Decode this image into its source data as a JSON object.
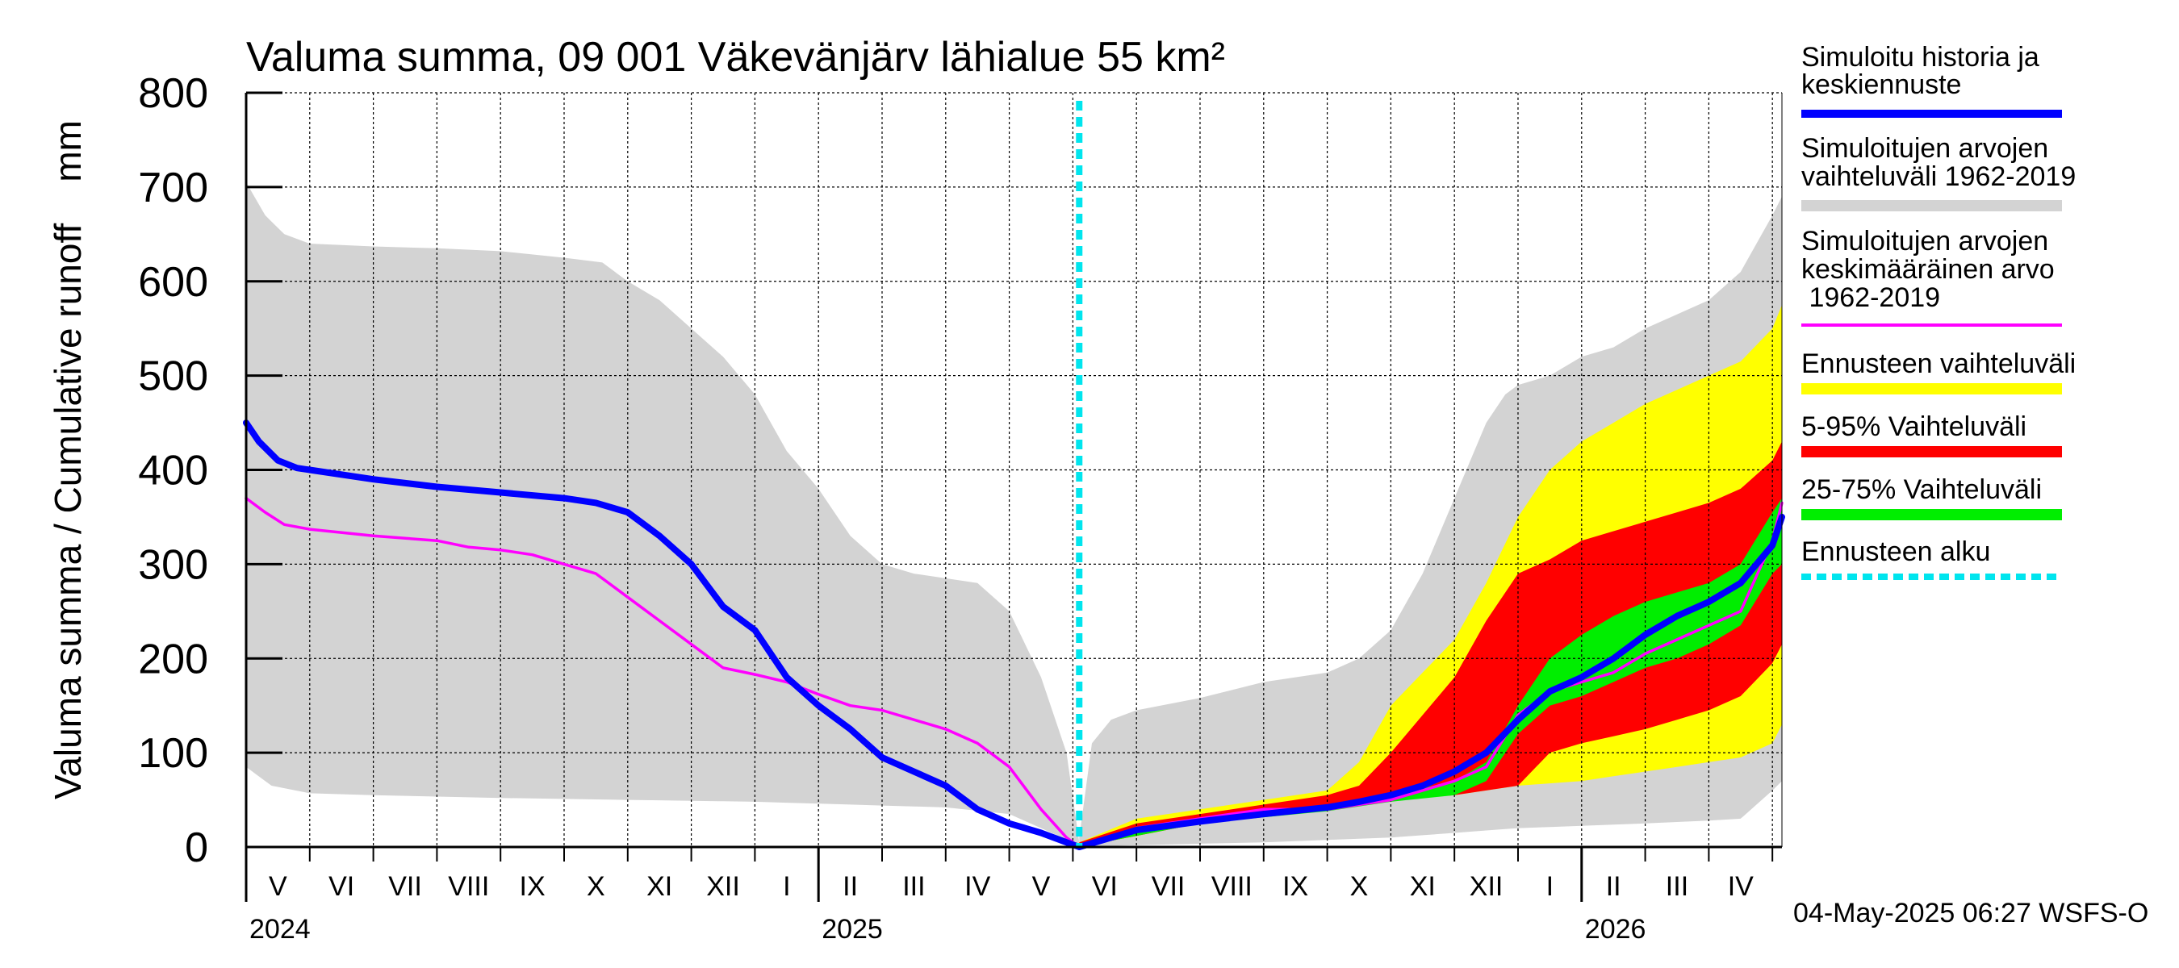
{
  "chart_data": {
    "type": "area",
    "title": "Valuma summa, 09 001 Väkevänjärv lähialue 55 km²",
    "ylabel": "Valuma summa / Cumulative runoff    mm",
    "ylim": [
      0,
      800
    ],
    "yticks": [
      "0",
      "100",
      "200",
      "300",
      "400",
      "500",
      "600",
      "700",
      "800"
    ],
    "x_unit": "months since 2024-04-01",
    "xlim": [
      0,
      24.15
    ],
    "forecast_start": 13.1,
    "month_labels": [
      "V",
      "VI",
      "VII",
      "VIII",
      "IX",
      "X",
      "XI",
      "XII",
      "I",
      "II",
      "III",
      "IV",
      "V",
      "VI",
      "VII",
      "VIII",
      "IX",
      "X",
      "XI",
      "XII",
      "I",
      "II",
      "III",
      "IV"
    ],
    "year_labels": [
      {
        "label": "2024",
        "x": 0
      },
      {
        "label": "2025",
        "x": 9
      },
      {
        "label": "2026",
        "x": 21
      }
    ],
    "timestamp": "04-May-2025 06:27 WSFS-O",
    "legend": [
      {
        "label": "Simuloitu historia ja\nkeskiennuste",
        "color": "#0000ff",
        "style": "line"
      },
      {
        "label": "Simuloitujen arvojen\nvaihteluväli 1962-2019",
        "color": "#d3d3d3",
        "style": "band"
      },
      {
        "label": "Simuloitujen arvojen\nkeskimääräinen arvo\n   1962-2019",
        "color": "#ff00ff",
        "style": "thin"
      },
      {
        "label": "Ennusteen vaihteluväli",
        "color": "#ffff00",
        "style": "band"
      },
      {
        "label": "5-95% Vaihteluväli",
        "color": "#ff0000",
        "style": "band"
      },
      {
        "label": "25-75% Vaihteluväli",
        "color": "#00ee00",
        "style": "band"
      },
      {
        "label": "Ennusteen alku",
        "color": "#00e5ee",
        "style": "dotted"
      }
    ],
    "series": [
      {
        "name": "Simuloitujen arvojen vaihteluväli 1962-2019 (upper)",
        "color": "#d3d3d3",
        "x": [
          0,
          0.3,
          0.6,
          1,
          2,
          3,
          4,
          5,
          5.6,
          6,
          6.5,
          7,
          7.5,
          8,
          8.5,
          9,
          9.5,
          10,
          10.5,
          11,
          11.5,
          12,
          12.5,
          12.9,
          13.1
        ],
        "y": [
          705,
          670,
          650,
          640,
          637,
          635,
          632,
          625,
          620,
          600,
          580,
          550,
          520,
          480,
          420,
          380,
          330,
          300,
          290,
          285,
          280,
          250,
          180,
          100,
          5
        ]
      },
      {
        "name": "Simuloitujen arvojen vaihteluväli 1962-2019 (lower)",
        "color": "#d3d3d3",
        "x": [
          0,
          0.4,
          1,
          2,
          4,
          6,
          8,
          9,
          10,
          11,
          12,
          12.5,
          12.9,
          13.1
        ],
        "y": [
          85,
          65,
          57,
          55,
          52,
          50,
          48,
          46,
          44,
          42,
          35,
          20,
          8,
          0
        ]
      },
      {
        "name": "Sim upper (forecast side)",
        "color": "#d3d3d3",
        "x": [
          13.1,
          13.3,
          13.6,
          14,
          15,
          16,
          17,
          17.5,
          18,
          18.5,
          19,
          19.5,
          19.8,
          20,
          20.5,
          21,
          21.5,
          22,
          22.5,
          23,
          23.5,
          24,
          24.15
        ],
        "y": [
          10,
          110,
          135,
          145,
          158,
          175,
          185,
          200,
          230,
          290,
          370,
          450,
          480,
          490,
          500,
          520,
          530,
          550,
          565,
          580,
          610,
          670,
          690
        ]
      },
      {
        "name": "Sim lower (forecast side)",
        "color": "#d3d3d3",
        "x": [
          13.1,
          14,
          16,
          18,
          20,
          22,
          23,
          23.5,
          24,
          24.15
        ],
        "y": [
          0,
          2,
          5,
          10,
          20,
          25,
          28,
          30,
          60,
          70
        ]
      },
      {
        "name": "Ennusteen vaihteluväli (upper)",
        "color": "#ffff00",
        "x": [
          13.1,
          14,
          15,
          16,
          17,
          17.5,
          18,
          18.5,
          19,
          19.5,
          20,
          20.5,
          21,
          21.5,
          22,
          22.5,
          23,
          23.5,
          24,
          24.15
        ],
        "y": [
          5,
          30,
          40,
          50,
          60,
          90,
          150,
          185,
          220,
          280,
          350,
          400,
          430,
          450,
          470,
          485,
          500,
          515,
          550,
          575
        ]
      },
      {
        "name": "Ennusteen vaihteluväli (lower)",
        "color": "#ffff00",
        "x": [
          13.1,
          15,
          17,
          18,
          19,
          20,
          21,
          22,
          23,
          23.5,
          24,
          24.15
        ],
        "y": [
          0,
          25,
          40,
          50,
          55,
          65,
          70,
          80,
          90,
          95,
          110,
          130
        ]
      },
      {
        "name": "5-95% Vaihteluväli (upper)",
        "color": "#ff0000",
        "x": [
          13.1,
          14,
          15,
          16,
          17,
          17.5,
          18,
          18.5,
          19,
          19.5,
          20,
          20.5,
          21,
          21.5,
          22,
          22.5,
          23,
          23.5,
          24,
          24.15
        ],
        "y": [
          5,
          25,
          35,
          45,
          55,
          65,
          100,
          140,
          180,
          240,
          290,
          305,
          325,
          335,
          345,
          355,
          365,
          380,
          410,
          430
        ]
      },
      {
        "name": "5-95% Vaihteluväli (lower)",
        "color": "#ff0000",
        "x": [
          13.1,
          15,
          17,
          18,
          19,
          20,
          20.5,
          21,
          22,
          23,
          23.5,
          24,
          24.15
        ],
        "y": [
          0,
          25,
          40,
          50,
          55,
          65,
          100,
          110,
          125,
          145,
          160,
          195,
          215
        ]
      },
      {
        "name": "25-75% Vaihteluväli (upper)",
        "color": "#00ee00",
        "x": [
          13.1,
          15,
          17,
          18,
          19,
          19.5,
          20,
          20.5,
          21,
          21.5,
          22,
          22.5,
          23,
          23.5,
          24,
          24.15
        ],
        "y": [
          3,
          28,
          42,
          55,
          70,
          90,
          150,
          200,
          225,
          245,
          260,
          270,
          280,
          300,
          355,
          370
        ]
      },
      {
        "name": "25-75% Vaihteluväli (lower)",
        "color": "#00ee00",
        "x": [
          13.1,
          15,
          17,
          18,
          19,
          19.5,
          20,
          20.5,
          21,
          21.5,
          22,
          22.5,
          23,
          23.5,
          24,
          24.15
        ],
        "y": [
          0,
          25,
          38,
          48,
          55,
          70,
          120,
          150,
          160,
          175,
          190,
          200,
          215,
          235,
          290,
          300
        ]
      },
      {
        "name": "Simuloitujen arvojen keskimääräinen arvo 1962-2019",
        "color": "#ff00ff",
        "x": [
          0,
          0.3,
          0.6,
          1,
          2,
          3,
          3.5,
          4,
          4.5,
          5,
          5.5,
          6,
          6.5,
          7,
          7.5,
          8,
          8.5,
          9,
          9.5,
          10,
          10.5,
          11,
          11.5,
          12,
          12.5,
          12.9,
          13.1,
          14,
          15,
          16,
          17,
          18,
          18.5,
          19,
          19.5,
          20,
          20.5,
          21,
          21.5,
          22,
          22.5,
          23,
          23.5,
          24,
          24.15
        ],
        "y": [
          370,
          355,
          342,
          337,
          330,
          325,
          318,
          315,
          310,
          300,
          290,
          265,
          240,
          215,
          190,
          183,
          175,
          162,
          150,
          145,
          135,
          125,
          110,
          85,
          40,
          10,
          0,
          20,
          30,
          40,
          40,
          50,
          60,
          70,
          85,
          140,
          165,
          175,
          185,
          205,
          220,
          235,
          250,
          325,
          365
        ]
      },
      {
        "name": "Simuloitu historia ja keskiennuste",
        "color": "#0000ff",
        "x": [
          0,
          0.2,
          0.5,
          0.8,
          1,
          2,
          3,
          4,
          5,
          5.5,
          6,
          6.5,
          7,
          7.5,
          8,
          8.5,
          9,
          9.5,
          10,
          10.5,
          11,
          11.5,
          12,
          12.5,
          12.9,
          13.1,
          14,
          15,
          16,
          17,
          17.5,
          18,
          18.5,
          19,
          19.5,
          20,
          20.5,
          21,
          21.5,
          22,
          22.5,
          23,
          23.5,
          24,
          24.15
        ],
        "y": [
          450,
          430,
          410,
          402,
          400,
          390,
          382,
          376,
          370,
          365,
          355,
          330,
          300,
          255,
          230,
          180,
          150,
          125,
          95,
          80,
          65,
          40,
          25,
          15,
          5,
          0,
          18,
          27,
          35,
          42,
          48,
          55,
          65,
          80,
          100,
          135,
          165,
          180,
          200,
          225,
          245,
          260,
          280,
          320,
          350
        ]
      }
    ]
  }
}
